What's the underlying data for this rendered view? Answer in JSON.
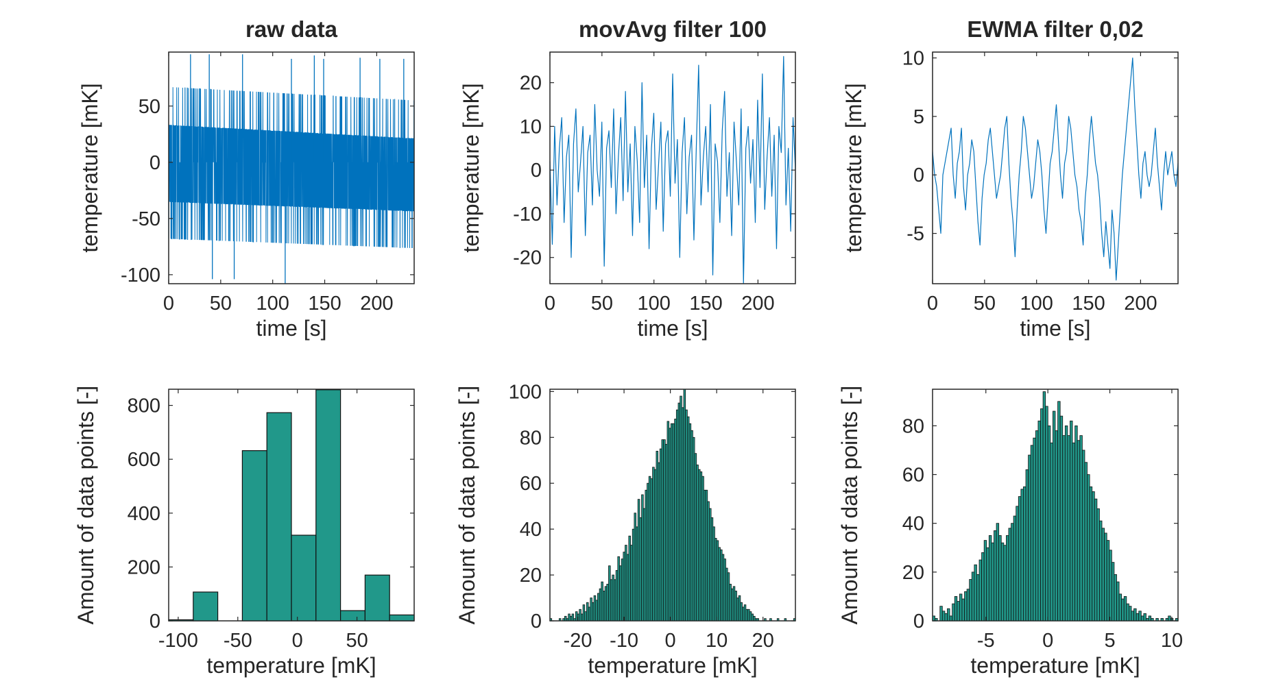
{
  "colors": {
    "line": "#0072BD",
    "bar": "#21988A",
    "bar_edge": "#111111",
    "axis": "#262626"
  },
  "chart_data": [
    {
      "type": "line",
      "title": "raw data",
      "xlabel": "time [s]",
      "ylabel": "temperature [mK]",
      "xlim": [
        0,
        236
      ],
      "ylim": [
        -108,
        98
      ],
      "xticks": [
        0,
        50,
        100,
        150,
        200
      ],
      "yticks": [
        -100,
        -50,
        0,
        50
      ],
      "grid": false,
      "series": [
        {
          "style": "dense-oscillating",
          "x": [
            0,
            236
          ],
          "levels": [
            -68,
            -35,
            0,
            33,
            67
          ],
          "level_drift_at_end": -12,
          "spikes": [
            {
              "x": 21,
              "y": 96
            },
            {
              "x": 39,
              "y": 96
            },
            {
              "x": 42,
              "y": -104
            },
            {
              "x": 63,
              "y": -104
            },
            {
              "x": 71,
              "y": 96
            },
            {
              "x": 112,
              "y": -108
            },
            {
              "x": 118,
              "y": 92
            },
            {
              "x": 140,
              "y": 95
            },
            {
              "x": 149,
              "y": 92
            },
            {
              "x": 184,
              "y": 93
            },
            {
              "x": 203,
              "y": 92
            },
            {
              "x": 226,
              "y": 92
            }
          ]
        }
      ]
    },
    {
      "type": "line",
      "title": "movAvg filter 100",
      "xlabel": "time [s]",
      "ylabel": "temperature [mK]",
      "xlim": [
        0,
        236
      ],
      "ylim": [
        -26,
        27
      ],
      "xticks": [
        0,
        50,
        100,
        150,
        200
      ],
      "yticks": [
        -20,
        -10,
        0,
        10,
        20
      ],
      "grid": false,
      "series": [
        {
          "x_range": [
            0,
            236
          ],
          "y": [
            2,
            -17,
            10,
            -8,
            5,
            12,
            -12,
            3,
            8,
            -20,
            6,
            14,
            -5,
            2,
            10,
            -15,
            4,
            8,
            -8,
            15,
            0,
            -6,
            11,
            -22,
            5,
            9,
            -4,
            14,
            -10,
            3,
            12,
            -7,
            18,
            -5,
            6,
            -15,
            10,
            2,
            -12,
            20,
            -4,
            8,
            -18,
            5,
            13,
            -9,
            1,
            11,
            -14,
            6,
            9,
            -6,
            22,
            -3,
            7,
            -20,
            4,
            12,
            -10,
            3,
            8,
            -16,
            5,
            24,
            -8,
            3,
            10,
            -5,
            15,
            -24,
            6,
            2,
            -12,
            9,
            18,
            -6,
            4,
            -15,
            11,
            2,
            -8,
            14,
            -26,
            5,
            10,
            -3,
            7,
            -12,
            16,
            -4,
            22,
            -9,
            3,
            12,
            -6,
            8,
            -18,
            10,
            4,
            26,
            -8,
            5,
            -14,
            12,
            0
          ]
        }
      ]
    },
    {
      "type": "line",
      "title": "EWMA filter 0,02",
      "xlabel": "time [s]",
      "ylabel": "temperature [mK]",
      "xlim": [
        0,
        236
      ],
      "ylim": [
        -9.3,
        10.5
      ],
      "xticks": [
        0,
        50,
        100,
        150,
        200
      ],
      "yticks": [
        -5,
        0,
        5,
        10
      ],
      "grid": false,
      "series": [
        {
          "x_range": [
            0,
            236
          ],
          "y": [
            2,
            0,
            -1,
            -3,
            -5,
            0,
            1,
            2,
            3,
            4,
            0,
            -2,
            1,
            2,
            4,
            -1,
            -3,
            0,
            1,
            3,
            2,
            -1,
            -4,
            -6,
            -2,
            0,
            1,
            3,
            4,
            2,
            0,
            -2,
            -1,
            0,
            2,
            4,
            5,
            1,
            -2,
            -4,
            -7,
            -3,
            0,
            2,
            5,
            4,
            2,
            0,
            -2,
            -1,
            1,
            3,
            2,
            0,
            -3,
            -5,
            -2,
            1,
            2,
            4,
            6,
            3,
            0,
            -2,
            1,
            2,
            5,
            4,
            2,
            0,
            -1,
            -3,
            -4,
            -6,
            -2,
            0,
            3,
            5,
            3,
            1,
            0,
            -2,
            -5,
            -7,
            -4,
            -6,
            -8,
            -3,
            -5,
            -9,
            -6,
            -3,
            0,
            2,
            4,
            6,
            8,
            10,
            6,
            3,
            0,
            -2,
            1,
            2,
            0,
            -1,
            0,
            2,
            4,
            1,
            -1,
            -3,
            0,
            2,
            0,
            1,
            2,
            0,
            -1,
            1
          ]
        }
      ]
    },
    {
      "type": "bar",
      "title": "",
      "xlabel": "temperature [mK]",
      "ylabel": "Amount of data points [-]",
      "xlim": [
        -108,
        98
      ],
      "ylim": [
        0,
        860
      ],
      "xticks": [
        -100,
        -50,
        0,
        50
      ],
      "yticks": [
        0,
        200,
        400,
        600,
        800
      ],
      "bin_edges": [
        -108,
        -87.4,
        -66.8,
        -46.2,
        -25.6,
        -5,
        15.6,
        36.2,
        56.8,
        77.4,
        98
      ],
      "values": [
        4,
        107,
        0,
        632,
        773,
        318,
        858,
        38,
        170,
        22
      ]
    },
    {
      "type": "bar",
      "title": "",
      "xlabel": "temperature [mK]",
      "ylabel": "Amount of data points [-]",
      "xlim": [
        -26,
        27
      ],
      "ylim": [
        0,
        101
      ],
      "xticks": [
        -20,
        -10,
        0,
        10,
        20
      ],
      "yticks": [
        0,
        20,
        40,
        60,
        80,
        100
      ],
      "bin_range": [
        -26,
        27
      ],
      "values": [
        1,
        0,
        0,
        0,
        0,
        1,
        0,
        1,
        2,
        1,
        3,
        2,
        3,
        1,
        4,
        3,
        5,
        3,
        7,
        4,
        8,
        6,
        10,
        8,
        11,
        9,
        12,
        14,
        17,
        13,
        15,
        16,
        24,
        18,
        20,
        18,
        22,
        28,
        24,
        27,
        30,
        33,
        29,
        37,
        33,
        40,
        47,
        41,
        53,
        45,
        55,
        49,
        57,
        60,
        63,
        62,
        67,
        66,
        74,
        69,
        75,
        79,
        79,
        77,
        87,
        84,
        86,
        86,
        88,
        92,
        95,
        98,
        93,
        101,
        92,
        89,
        86,
        83,
        80,
        73,
        68,
        66,
        65,
        63,
        57,
        57,
        52,
        49,
        45,
        41,
        36,
        35,
        32,
        31,
        29,
        27,
        23,
        21,
        16,
        14,
        15,
        13,
        10,
        11,
        8,
        6,
        7,
        5,
        5,
        4,
        3,
        2,
        1,
        1,
        0,
        0,
        0,
        1,
        0,
        0,
        1,
        0,
        0,
        0,
        1,
        0,
        0,
        0,
        1,
        0,
        0,
        0,
        0,
        1
      ]
    },
    {
      "type": "bar",
      "title": "",
      "xlabel": "temperature [mK]",
      "ylabel": "Amount of data points [-]",
      "xlim": [
        -9.3,
        10.5
      ],
      "ylim": [
        0,
        95
      ],
      "xticks": [
        -5,
        0,
        5,
        10
      ],
      "yticks": [
        0,
        20,
        40,
        60,
        80
      ],
      "bin_range": [
        -9.3,
        10.5
      ],
      "values": [
        2,
        1,
        0,
        6,
        4,
        3,
        5,
        2,
        7,
        10,
        8,
        11,
        9,
        12,
        13,
        17,
        20,
        23,
        19,
        25,
        28,
        33,
        30,
        35,
        32,
        37,
        40,
        35,
        32,
        31,
        35,
        38,
        40,
        43,
        47,
        51,
        54,
        55,
        62,
        68,
        72,
        75,
        78,
        82,
        87,
        94,
        88,
        80,
        73,
        86,
        78,
        90,
        84,
        76,
        80,
        76,
        82,
        73,
        80,
        74,
        76,
        70,
        65,
        60,
        55,
        53,
        50,
        46,
        41,
        38,
        36,
        33,
        29,
        24,
        19,
        16,
        11,
        9,
        10,
        7,
        6,
        4,
        5,
        3,
        4,
        2,
        3,
        1,
        2,
        1,
        0,
        1,
        0,
        1,
        0,
        1,
        2,
        1,
        0,
        1
      ]
    }
  ]
}
